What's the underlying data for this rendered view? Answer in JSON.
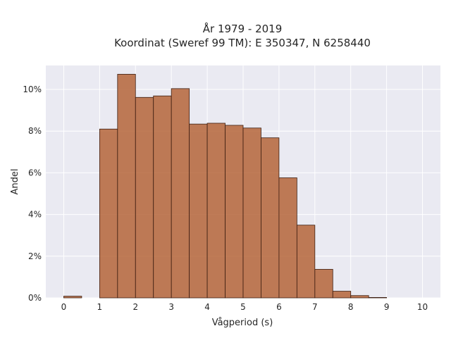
{
  "chart_data": {
    "type": "bar",
    "title_line1": "År 1979 - 2019",
    "title_line2": "Koordinat (Sweref 99 TM): E 350347, N 6258440",
    "xlabel": "Vågperiod (s)",
    "ylabel": "Andel",
    "xlim": [
      -0.5,
      10.5
    ],
    "ylim": [
      0,
      0.1115
    ],
    "x_ticks": [
      0,
      1,
      2,
      3,
      4,
      5,
      6,
      7,
      8,
      9,
      10
    ],
    "y_ticks": [
      0,
      0.02,
      0.04,
      0.06,
      0.08,
      0.1
    ],
    "y_tick_labels": [
      "0%",
      "2%",
      "4%",
      "6%",
      "8%",
      "10%"
    ],
    "bin_width": 0.5,
    "bins_start": [
      0,
      0.5,
      1,
      1.5,
      2,
      2.5,
      3,
      3.5,
      4,
      4.5,
      5,
      5.5,
      6,
      6.5,
      7,
      7.5,
      8,
      8.5,
      9,
      9.5
    ],
    "values": [
      0.0008,
      0,
      0.081,
      0.1073,
      0.0962,
      0.0969,
      0.1004,
      0.0834,
      0.0838,
      0.0828,
      0.0815,
      0.0768,
      0.0576,
      0.0349,
      0.0137,
      0.0032,
      0.0011,
      0.0002,
      0,
      0
    ],
    "bar_color": "#b5653a",
    "edge_color": "#3d1f12",
    "background": "#eaeaf2",
    "grid": true
  }
}
